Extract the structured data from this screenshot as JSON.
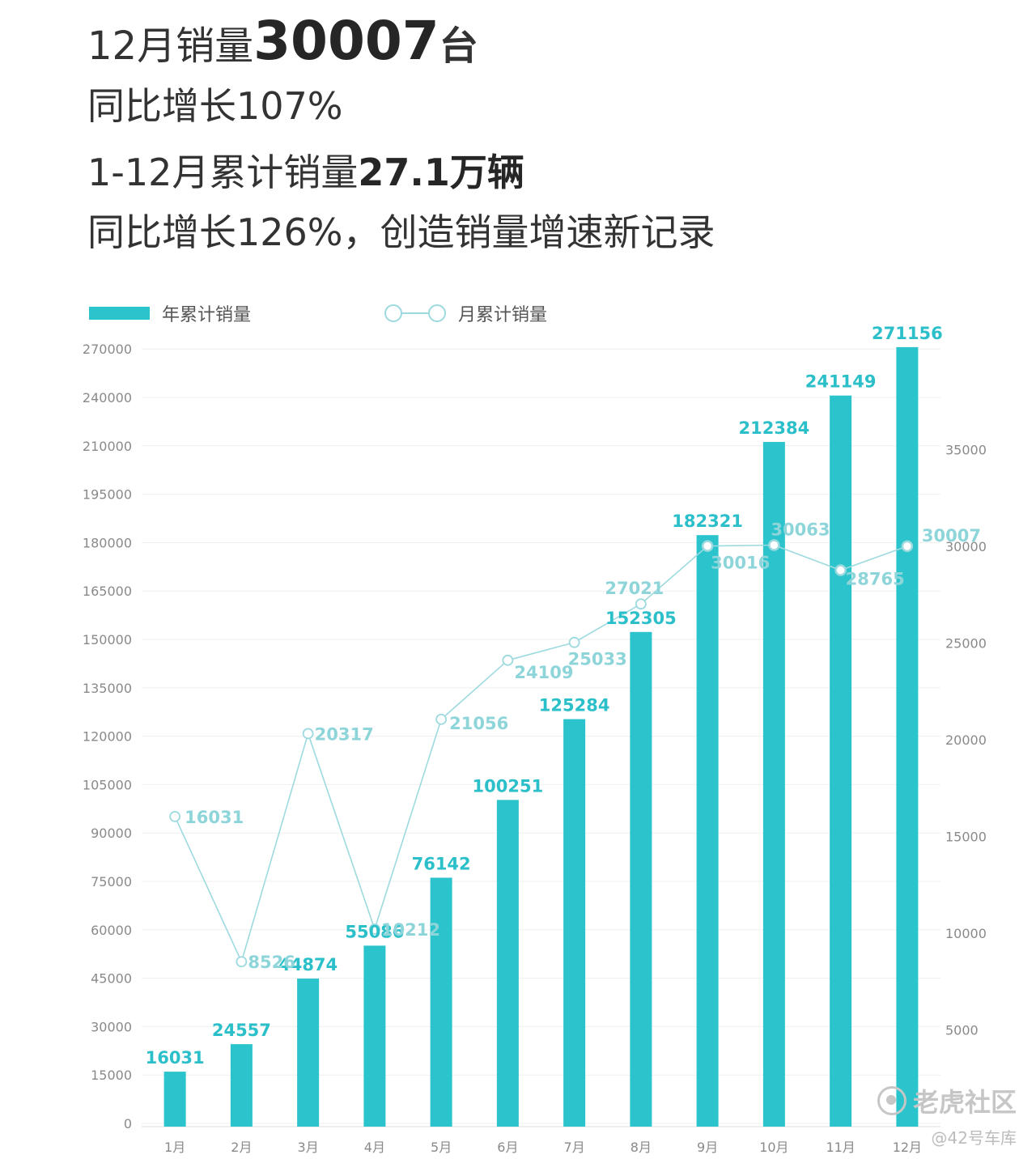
{
  "header": {
    "line1_prefix": "12月销量",
    "line1_value": "30007",
    "line1_unit": "台",
    "line2": "同比增长107%",
    "line3_prefix": "1-12月累计销量",
    "line3_value": "27.1万辆",
    "line4": "同比增长126%，创造销量增速新记录"
  },
  "colors": {
    "bar": "#2bc4cc",
    "line": "#9ddadf",
    "text": "#333333"
  },
  "watermark": {
    "line1": "老虎社区",
    "line2": "@42号车库"
  },
  "chart_data": {
    "type": "bar",
    "categories": [
      "1月",
      "2月",
      "3月",
      "4月",
      "5月",
      "6月",
      "7月",
      "8月",
      "9月",
      "10月",
      "11月",
      "12月"
    ],
    "series": [
      {
        "name": "年累计销量",
        "type": "bar",
        "axis": "left",
        "values": [
          16031,
          24557,
          44874,
          55086,
          76142,
          100251,
          125284,
          152305,
          182321,
          212384,
          241149,
          271156
        ]
      },
      {
        "name": "月累计销量",
        "type": "line",
        "axis": "right",
        "values": [
          16031,
          8526,
          20317,
          10212,
          21056,
          24109,
          25033,
          27021,
          30016,
          30063,
          28765,
          30007
        ]
      }
    ],
    "left_axis": {
      "ticks": [
        "0",
        "15000",
        "30000",
        "45000",
        "60000",
        "75000",
        "90000",
        "105000",
        "120000",
        "135000",
        "150000",
        "165000",
        "180000",
        "195000",
        "210000",
        "240000",
        "270000"
      ]
    },
    "right_axis": {
      "ticks": [
        "5000",
        "10000",
        "15000",
        "20000",
        "25000",
        "30000",
        "35000"
      ],
      "range": [
        0,
        40000
      ]
    },
    "legend": [
      {
        "label": "年累计销量",
        "kind": "bar"
      },
      {
        "label": "月累计销量",
        "kind": "line"
      }
    ],
    "legend_position": "top-left",
    "grid": true
  }
}
